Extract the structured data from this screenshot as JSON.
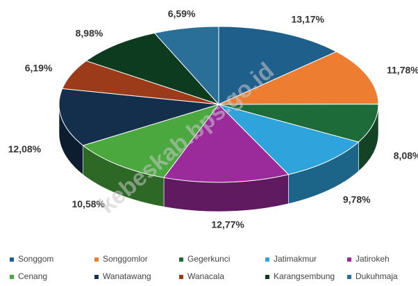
{
  "chart_data": {
    "type": "pie3d",
    "watermark": "kebeskab.bps.go.id",
    "categories": [
      "Songgom",
      "Songgomlor",
      "Gegerkunci",
      "Jatimakmur",
      "Jatirokeh",
      "Cenang",
      "Wanatawang",
      "Wanacala",
      "Karangsembung",
      "Dukuhmaja"
    ],
    "values": [
      13.17,
      11.78,
      8.08,
      9.78,
      12.77,
      10.58,
      12.08,
      6.19,
      8.98,
      6.59
    ],
    "value_labels": [
      "13,17%",
      "11,78%",
      "8,08%",
      "9,78%",
      "12,77%",
      "10,58%",
      "12,08%",
      "6,19%",
      "8,98%",
      "6,59%"
    ],
    "colors": [
      "#1f5f8b",
      "#ed7d31",
      "#1e6b3a",
      "#2ea3dc",
      "#9b2a9b",
      "#4aa83e",
      "#132f4c",
      "#9c3b1a",
      "#0d3b1f",
      "#2a6f97"
    ],
    "legend": "bottom"
  }
}
